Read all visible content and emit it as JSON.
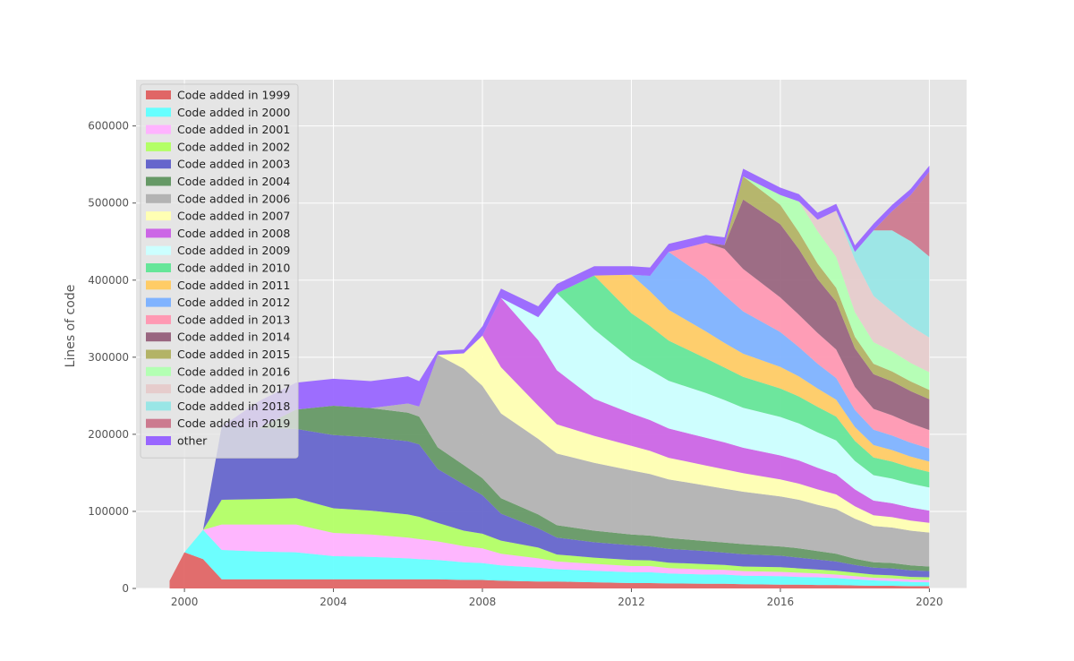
{
  "chart_data": {
    "type": "area",
    "title": "",
    "xlabel": "",
    "ylabel": "Lines of code",
    "xlim": [
      1998.7,
      2021.0
    ],
    "ylim": [
      0,
      660000
    ],
    "x_ticks": [
      2000,
      2004,
      2008,
      2012,
      2016,
      2020
    ],
    "x_tick_labels": [
      "2000",
      "2004",
      "2008",
      "2012",
      "2016",
      "2020"
    ],
    "y_ticks": [
      0,
      100000,
      200000,
      300000,
      400000,
      500000,
      600000
    ],
    "y_tick_labels": [
      "0",
      "100000",
      "200000",
      "300000",
      "400000",
      "500000",
      "600000"
    ],
    "grid": true,
    "legend_position": "upper-left",
    "x": [
      1999.6,
      2000.0,
      2000.5,
      2001.0,
      2002.0,
      2003.0,
      2004.0,
      2005.0,
      2006.0,
      2006.3,
      2006.8,
      2007.5,
      2008.0,
      2008.5,
      2009.5,
      2010.0,
      2011.0,
      2012.0,
      2012.5,
      2013.0,
      2014.0,
      2014.5,
      2015.0,
      2016.0,
      2016.5,
      2017.0,
      2017.5,
      2018.0,
      2018.5,
      2019.0,
      2019.5,
      2020.0
    ],
    "series": [
      {
        "name": "Code added in 1999",
        "color": "#e06666",
        "values": [
          10000,
          47000,
          38000,
          12000,
          12000,
          12000,
          12000,
          12000,
          12000,
          12000,
          12000,
          11000,
          11000,
          10000,
          9000,
          9000,
          8000,
          7000,
          7000,
          6500,
          6000,
          6000,
          5500,
          5000,
          5000,
          4500,
          4500,
          4000,
          3500,
          3500,
          3000,
          3000
        ]
      },
      {
        "name": "Code added in 2000",
        "color": "#66ffff",
        "values": [
          0,
          0,
          38000,
          38000,
          36000,
          35000,
          30000,
          29000,
          27000,
          26000,
          25000,
          23000,
          22000,
          20000,
          18000,
          16000,
          15000,
          14000,
          14000,
          13000,
          12000,
          12000,
          11000,
          11000,
          10000,
          10000,
          9000,
          8000,
          7000,
          6000,
          5500,
          5000
        ]
      },
      {
        "name": "Code added in 2001",
        "color": "#ffb3ff",
        "values": [
          0,
          0,
          0,
          33000,
          35000,
          36000,
          30000,
          29000,
          27000,
          26000,
          24000,
          21000,
          19000,
          15000,
          12000,
          10000,
          9000,
          8000,
          8000,
          7000,
          6500,
          6000,
          6000,
          5500,
          5500,
          5000,
          4500,
          4000,
          3500,
          3500,
          3000,
          3000
        ]
      },
      {
        "name": "Code added in 2002",
        "color": "#b3ff66",
        "values": [
          0,
          0,
          0,
          32000,
          33000,
          34000,
          32000,
          31000,
          30000,
          29000,
          24000,
          20000,
          19000,
          17000,
          14000,
          9000,
          8000,
          8000,
          7500,
          7000,
          7000,
          6500,
          6000,
          6000,
          5500,
          5000,
          5000,
          4500,
          4000,
          4000,
          3500,
          3500
        ]
      },
      {
        "name": "Code added in 2003",
        "color": "#6666cc",
        "values": [
          0,
          0,
          0,
          95000,
          92000,
          90000,
          95000,
          95000,
          95000,
          94000,
          70000,
          60000,
          50000,
          35000,
          25000,
          22000,
          20000,
          19000,
          18000,
          18000,
          17000,
          16000,
          16000,
          15000,
          14000,
          13000,
          12000,
          10000,
          9000,
          9000,
          8500,
          8000
        ]
      },
      {
        "name": "Code added in 2004",
        "color": "#669966",
        "values": [
          0,
          0,
          0,
          0,
          0,
          25000,
          38000,
          38000,
          37000,
          36000,
          28000,
          25000,
          22000,
          20000,
          18000,
          16000,
          15000,
          14000,
          14000,
          14000,
          13000,
          13000,
          13000,
          12000,
          12000,
          11000,
          10000,
          8000,
          7000,
          7000,
          6500,
          6000
        ]
      },
      {
        "name": "Code added in 2006",
        "color": "#b3b3b3",
        "values": [
          0,
          0,
          0,
          0,
          0,
          0,
          0,
          0,
          12000,
          13000,
          120000,
          125000,
          120000,
          110000,
          98000,
          93000,
          88000,
          83000,
          80000,
          76000,
          72000,
          70000,
          68000,
          65000,
          63000,
          60000,
          58000,
          52000,
          47000,
          46000,
          45000,
          44000
        ]
      },
      {
        "name": "Code added in 2007",
        "color": "#ffffb3",
        "values": [
          0,
          0,
          0,
          0,
          0,
          0,
          0,
          0,
          0,
          0,
          0,
          20000,
          65000,
          60000,
          43000,
          38000,
          35000,
          32000,
          30000,
          28000,
          26000,
          25000,
          24000,
          22000,
          21000,
          20000,
          19000,
          16000,
          14000,
          13500,
          13000,
          12500
        ]
      },
      {
        "name": "Code added in 2008",
        "color": "#cc66e6",
        "values": [
          0,
          0,
          0,
          0,
          0,
          0,
          0,
          0,
          0,
          0,
          0,
          0,
          0,
          90000,
          85000,
          70000,
          48000,
          42000,
          40000,
          38000,
          36000,
          35000,
          33000,
          31000,
          30000,
          28000,
          26000,
          22000,
          19000,
          18000,
          17000,
          16000
        ]
      },
      {
        "name": "Code added in 2009",
        "color": "#ccffff",
        "values": [
          0,
          0,
          0,
          0,
          0,
          0,
          0,
          0,
          0,
          0,
          0,
          0,
          0,
          0,
          30000,
          100000,
          90000,
          70000,
          65000,
          62000,
          58000,
          55000,
          52000,
          50000,
          48000,
          46000,
          44000,
          37000,
          33000,
          32000,
          31000,
          30000
        ]
      },
      {
        "name": "Code added in 2010",
        "color": "#66e699",
        "values": [
          0,
          0,
          0,
          0,
          0,
          0,
          0,
          0,
          0,
          0,
          0,
          0,
          0,
          0,
          0,
          0,
          70000,
          60000,
          57000,
          52000,
          45000,
          42000,
          40000,
          37000,
          35000,
          33000,
          31000,
          26000,
          23000,
          22000,
          21000,
          20000
        ]
      },
      {
        "name": "Code added in 2011",
        "color": "#ffcc66",
        "values": [
          0,
          0,
          0,
          0,
          0,
          0,
          0,
          0,
          0,
          0,
          0,
          0,
          0,
          0,
          0,
          0,
          0,
          50000,
          45000,
          40000,
          35000,
          32000,
          30000,
          28000,
          26000,
          24000,
          22000,
          18000,
          16000,
          15000,
          14000,
          13500
        ]
      },
      {
        "name": "Code added in 2012",
        "color": "#80b3ff",
        "values": [
          0,
          0,
          0,
          0,
          0,
          0,
          0,
          0,
          0,
          0,
          0,
          0,
          0,
          0,
          0,
          0,
          0,
          0,
          20000,
          75000,
          70000,
          62000,
          55000,
          45000,
          38000,
          32000,
          28000,
          22000,
          20000,
          19000,
          18000,
          17000
        ]
      },
      {
        "name": "Code added in 2013",
        "color": "#ff99b3",
        "values": [
          0,
          0,
          0,
          0,
          0,
          0,
          0,
          0,
          0,
          0,
          0,
          0,
          0,
          0,
          0,
          0,
          0,
          0,
          0,
          0,
          45000,
          60000,
          55000,
          45000,
          42000,
          40000,
          37000,
          30000,
          27000,
          26000,
          25000,
          24000
        ]
      },
      {
        "name": "Code added in 2014",
        "color": "#996680",
        "values": [
          0,
          0,
          0,
          0,
          0,
          0,
          0,
          0,
          0,
          0,
          0,
          0,
          0,
          0,
          0,
          0,
          0,
          0,
          0,
          0,
          0,
          5000,
          90000,
          95000,
          85000,
          70000,
          62000,
          50000,
          45000,
          44000,
          42000,
          40000
        ]
      },
      {
        "name": "Code added in 2015",
        "color": "#b3b366",
        "values": [
          0,
          0,
          0,
          0,
          0,
          0,
          0,
          0,
          0,
          0,
          0,
          0,
          0,
          0,
          0,
          0,
          0,
          0,
          0,
          0,
          0,
          0,
          30000,
          25000,
          22000,
          20000,
          18000,
          15000,
          13500,
          13000,
          12500,
          12000
        ]
      },
      {
        "name": "Code added in 2016",
        "color": "#b3ffb3",
        "values": [
          0,
          0,
          0,
          0,
          0,
          0,
          0,
          0,
          0,
          0,
          0,
          0,
          0,
          0,
          0,
          0,
          0,
          0,
          0,
          0,
          0,
          0,
          0,
          13000,
          40000,
          42000,
          40000,
          32000,
          28000,
          26000,
          24000,
          23000
        ]
      },
      {
        "name": "Code added in 2017",
        "color": "#e6cccc",
        "values": [
          0,
          0,
          0,
          0,
          0,
          0,
          0,
          0,
          0,
          0,
          0,
          0,
          0,
          0,
          0,
          0,
          0,
          0,
          0,
          0,
          0,
          0,
          0,
          0,
          0,
          15000,
          60000,
          68000,
          60000,
          52000,
          48000,
          45000
        ]
      },
      {
        "name": "Code added in 2018",
        "color": "#99e6e6",
        "values": [
          0,
          0,
          0,
          0,
          0,
          0,
          0,
          0,
          0,
          0,
          0,
          0,
          0,
          0,
          0,
          0,
          0,
          0,
          0,
          0,
          0,
          0,
          0,
          0,
          0,
          0,
          0,
          10000,
          85000,
          105000,
          110000,
          105000
        ]
      },
      {
        "name": "Code added in 2019",
        "color": "#cc7a8f",
        "values": [
          0,
          0,
          0,
          0,
          0,
          0,
          0,
          0,
          0,
          0,
          0,
          0,
          0,
          0,
          0,
          0,
          0,
          0,
          0,
          0,
          0,
          0,
          0,
          0,
          0,
          0,
          0,
          0,
          0,
          25000,
          60000,
          110000
        ]
      },
      {
        "name": "other",
        "color": "#9966ff",
        "values": [
          0,
          0,
          0,
          0,
          35000,
          35000,
          35000,
          35000,
          35000,
          33000,
          5000,
          5000,
          12000,
          12000,
          14000,
          12000,
          12000,
          11000,
          11000,
          10500,
          10000,
          10000,
          10000,
          9500,
          9500,
          9000,
          9000,
          8500,
          8500,
          8000,
          8000,
          8000
        ]
      }
    ]
  }
}
